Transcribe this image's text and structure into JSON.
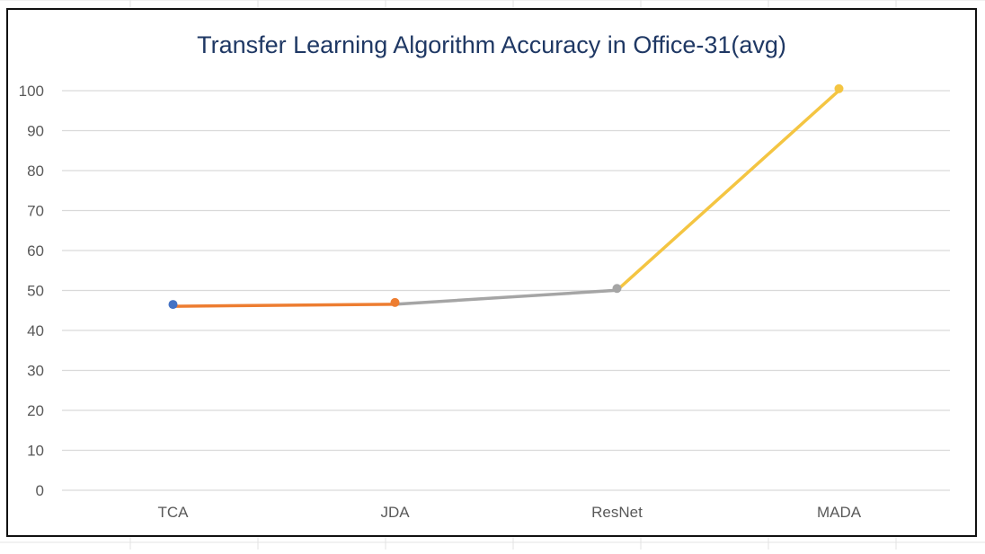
{
  "chart_data": {
    "type": "line",
    "title": "Transfer Learning Algorithm Accuracy in Office-31(avg)",
    "xlabel": "",
    "ylabel": "",
    "categories": [
      "TCA",
      "JDA",
      "ResNet",
      "MADA"
    ],
    "values": [
      46.5,
      47.0,
      50.5,
      100.5
    ],
    "ylim": [
      0,
      100
    ],
    "yticks": [
      "0",
      "10",
      "20",
      "30",
      "40",
      "50",
      "60",
      "70",
      "80",
      "90",
      "100"
    ],
    "grid": true,
    "legend": "none",
    "segment_colors": [
      "#ed7d31",
      "#a5a5a5",
      "#f4c542"
    ],
    "point_colors": [
      "#4472c4",
      "#ed7d31",
      "#a5a5a5",
      "#f4c542"
    ],
    "gridline_color": "#d9d9d9",
    "title_color": "#1f3864"
  }
}
